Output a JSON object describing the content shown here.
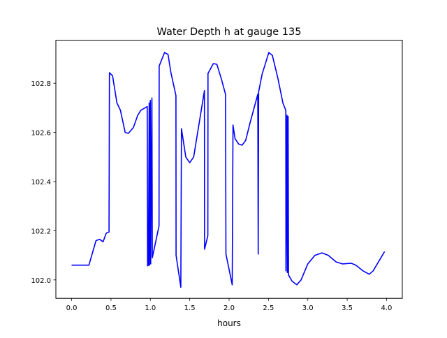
{
  "chart_data": {
    "type": "line",
    "title": "Water Depth h at gauge 135",
    "xlabel": "hours",
    "ylabel": "",
    "xlim": [
      -0.2,
      4.2
    ],
    "ylim": [
      101.925,
      102.975
    ],
    "xticks": [
      0.0,
      0.5,
      1.0,
      1.5,
      2.0,
      2.5,
      3.0,
      3.5,
      4.0
    ],
    "xtick_labels": [
      "0.0",
      "0.5",
      "1.0",
      "1.5",
      "2.0",
      "2.5",
      "3.0",
      "3.5",
      "4.0"
    ],
    "yticks": [
      102.0,
      102.2,
      102.4,
      102.6,
      102.8
    ],
    "ytick_labels": [
      "102.0",
      "102.2",
      "102.4",
      "102.6",
      "102.8"
    ],
    "grid": false,
    "series": [
      {
        "name": "h",
        "color": "#0000ff",
        "x": [
          0.0,
          0.22,
          0.31,
          0.355,
          0.4,
          0.44,
          0.475,
          0.48,
          0.52,
          0.575,
          0.62,
          0.68,
          0.72,
          0.785,
          0.84,
          0.88,
          0.96,
          0.965,
          0.975,
          0.985,
          0.99,
          1.0,
          1.005,
          1.02,
          1.025,
          1.11,
          1.112,
          1.18,
          1.225,
          1.26,
          1.325,
          1.327,
          1.387,
          1.395,
          1.45,
          1.5,
          1.55,
          1.687,
          1.689,
          1.73,
          1.732,
          1.8,
          1.845,
          1.9,
          1.955,
          1.96,
          2.04,
          2.05,
          2.075,
          2.12,
          2.165,
          2.21,
          2.27,
          2.365,
          2.37,
          2.375,
          2.42,
          2.505,
          2.55,
          2.62,
          2.685,
          2.72,
          2.722,
          2.735,
          2.74,
          2.75,
          2.755,
          2.8,
          2.86,
          2.915,
          3.0,
          3.09,
          3.18,
          3.26,
          3.36,
          3.44,
          3.55,
          3.61,
          3.7,
          3.78,
          3.83,
          3.975
        ],
        "y": [
          102.06,
          102.06,
          102.16,
          102.165,
          102.155,
          102.19,
          102.195,
          102.843,
          102.83,
          102.72,
          102.69,
          102.6,
          102.596,
          102.62,
          102.67,
          102.69,
          102.705,
          102.057,
          102.06,
          102.72,
          102.06,
          102.73,
          102.065,
          102.74,
          102.09,
          102.22,
          102.87,
          102.925,
          102.917,
          102.845,
          102.75,
          102.1,
          101.97,
          102.615,
          102.5,
          102.477,
          102.5,
          102.77,
          102.125,
          102.18,
          102.84,
          102.88,
          102.877,
          102.82,
          102.755,
          102.105,
          101.98,
          102.63,
          102.575,
          102.553,
          102.548,
          102.567,
          102.643,
          102.755,
          102.105,
          102.765,
          102.837,
          102.925,
          102.913,
          102.82,
          102.718,
          102.69,
          102.037,
          102.67,
          102.03,
          102.665,
          102.02,
          101.995,
          101.98,
          102.0,
          102.065,
          102.1,
          102.11,
          102.1,
          102.073,
          102.065,
          102.068,
          102.06,
          102.037,
          102.023,
          102.037,
          102.115
        ]
      }
    ]
  }
}
